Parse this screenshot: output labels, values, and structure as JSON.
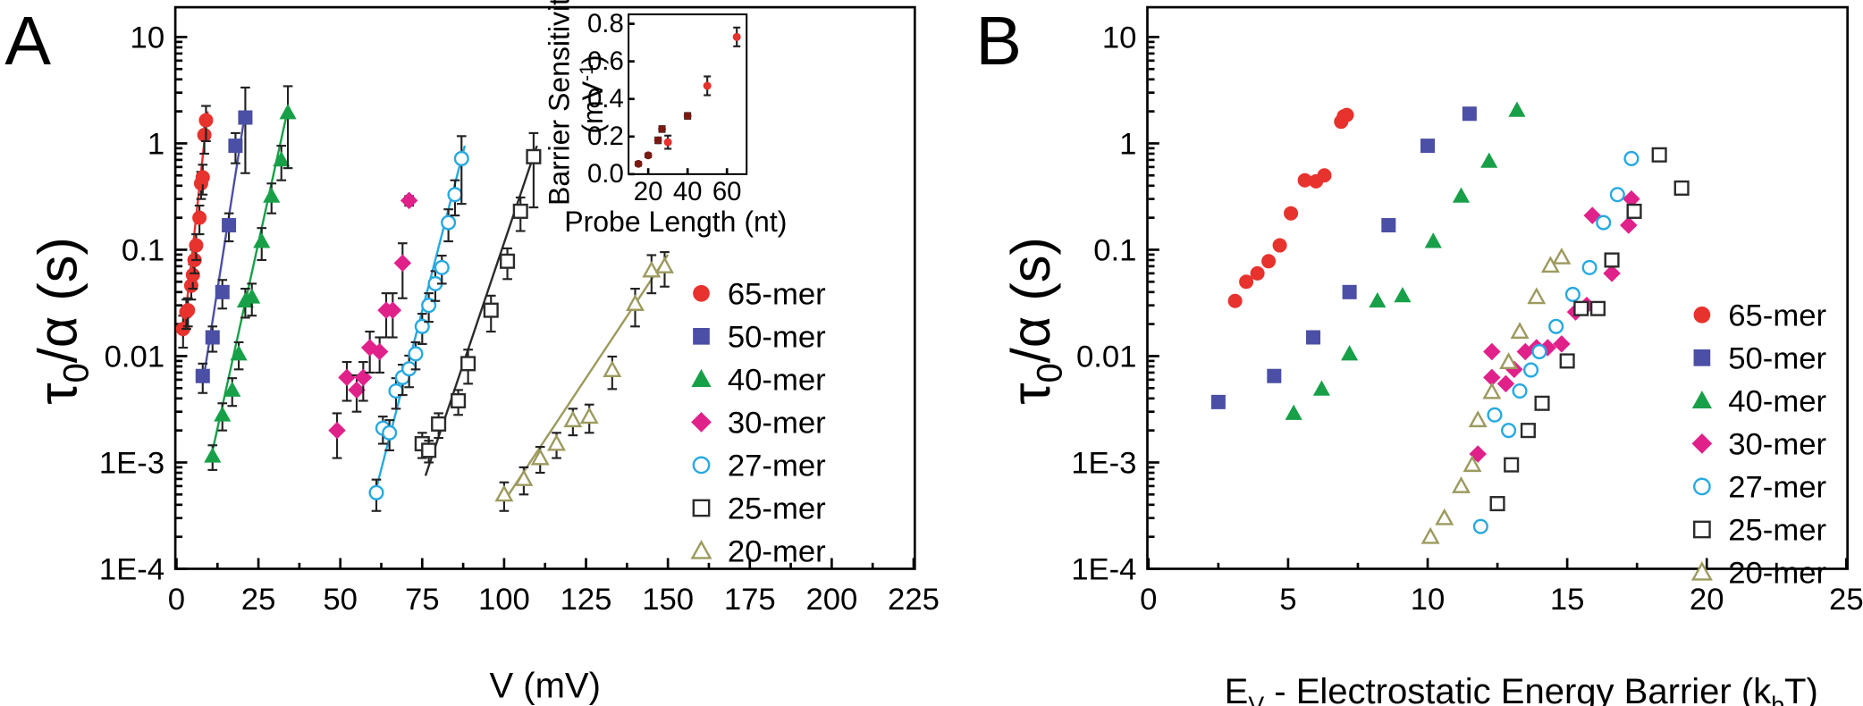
{
  "panels": {
    "a": {
      "letter": "A",
      "xlabel": "V (mV)",
      "ylabel_main": "τ",
      "ylabel_sub": "0",
      "ylabel_rest": "/α (s)"
    },
    "b": {
      "letter": "B",
      "xlabel_main": "E",
      "xlabel_sub": "V",
      "xlabel_mid": " - Electrostatic Energy Barrier (k",
      "xlabel_sub2": "b",
      "xlabel_end": "T)",
      "ylabel_main": "τ",
      "ylabel_sub": "0",
      "ylabel_rest": "/α (s)"
    },
    "inset": {
      "xlabel": "Probe Length (nt)",
      "ylabel_line1": "Barrier Sensitivity",
      "ylabel_line2_pre": "(mV",
      "ylabel_line2_sup": "-1",
      "ylabel_line2_post": ")"
    }
  },
  "y_tick_labels": [
    "1E-4",
    "1E-3",
    "0.01",
    "0.1",
    "1",
    "10"
  ],
  "series_style": [
    {
      "name": "65-mer",
      "color": "#e8322e",
      "marker": "circle",
      "filled": true
    },
    {
      "name": "50-mer",
      "color": "#4b4fa6",
      "marker": "square",
      "filled": true
    },
    {
      "name": "40-mer",
      "color": "#18a049",
      "marker": "triangle",
      "filled": true
    },
    {
      "name": "30-mer",
      "color": "#e0218a",
      "marker": "diamond",
      "filled": true
    },
    {
      "name": "27-mer",
      "color": "#27a9e1",
      "marker": "circle",
      "filled": false
    },
    {
      "name": "25-mer",
      "color": "#2b2b2b",
      "marker": "square",
      "filled": false
    },
    {
      "name": "20-mer",
      "color": "#9c9a5e",
      "marker": "triangle",
      "filled": false
    }
  ],
  "chart_data": [
    {
      "id": "panel-a",
      "type": "scatter",
      "title": "",
      "xlabel": "V (mV)",
      "ylabel": "τ0/α (s)",
      "xlim": [
        0,
        225
      ],
      "ylim": [
        0.0001,
        20
      ],
      "yscale": "log",
      "xticks": [
        0,
        25,
        50,
        75,
        100,
        125,
        150,
        175,
        200,
        225
      ],
      "legend": "right",
      "series": [
        {
          "name": "65-mer",
          "x": [
            2,
            3,
            3.5,
            4.5,
            5,
            5.5,
            6,
            7,
            7.5,
            8,
            8.5,
            9
          ],
          "y": [
            0.018,
            0.026,
            0.027,
            0.046,
            0.058,
            0.08,
            0.11,
            0.2,
            0.42,
            0.48,
            1.2,
            1.65
          ],
          "err": [
            0.006,
            0.008,
            0.008,
            0.012,
            0.015,
            0.02,
            0.03,
            0.06,
            0.12,
            0.15,
            0.4,
            0.6
          ],
          "fit": [
            [
              2,
              0.015
            ],
            [
              9.5,
              2.0
            ]
          ]
        },
        {
          "name": "50-mer",
          "x": [
            8,
            11,
            14,
            16,
            18,
            21
          ],
          "y": [
            0.0065,
            0.015,
            0.04,
            0.17,
            0.95,
            1.75
          ],
          "err": [
            0.002,
            0.004,
            0.012,
            0.05,
            0.3,
            1.6
          ],
          "fit": [
            [
              8,
              0.0055
            ],
            [
              21,
              2.0
            ]
          ]
        },
        {
          "name": "40-mer",
          "x": [
            11,
            14,
            17,
            19,
            21,
            23,
            26,
            29,
            32,
            34
          ],
          "y": [
            0.00115,
            0.0028,
            0.0048,
            0.0105,
            0.033,
            0.036,
            0.12,
            0.32,
            0.7,
            1.95
          ],
          "err": [
            0.0003,
            0.0008,
            0.0014,
            0.003,
            0.01,
            0.012,
            0.04,
            0.1,
            0.25,
            1.5
          ],
          "fit": [
            [
              10.5,
              0.0011
            ],
            [
              34,
              2.1
            ]
          ]
        },
        {
          "name": "30-mer",
          "x": [
            49,
            52,
            55,
            57,
            59,
            62,
            64,
            66,
            69,
            71
          ],
          "y": [
            0.002,
            0.0063,
            0.0048,
            0.0063,
            0.012,
            0.011,
            0.027,
            0.027,
            0.075,
            0.29
          ],
          "err": [
            0.0009,
            0.0025,
            0.0018,
            0.0025,
            0.005,
            0.004,
            0.012,
            0.012,
            0.04,
            0.03
          ],
          "fit": []
        },
        {
          "name": "27-mer",
          "x": [
            61,
            63,
            65,
            67,
            69,
            71,
            73,
            75,
            77,
            79,
            81,
            83,
            85,
            87
          ],
          "y": [
            0.00052,
            0.0021,
            0.0019,
            0.0047,
            0.0063,
            0.0076,
            0.0105,
            0.019,
            0.03,
            0.048,
            0.068,
            0.18,
            0.33,
            0.72
          ],
          "err": [
            0.00017,
            0.0006,
            0.0006,
            0.0015,
            0.002,
            0.0025,
            0.003,
            0.006,
            0.009,
            0.015,
            0.02,
            0.06,
            0.12,
            0.45
          ],
          "fit": [
            [
              60.5,
              0.0005
            ],
            [
              88,
              0.95
            ]
          ]
        },
        {
          "name": "25-mer",
          "x": [
            75,
            77,
            80,
            86,
            89,
            96,
            101,
            105,
            109
          ],
          "y": [
            0.0015,
            0.0013,
            0.0023,
            0.0038,
            0.0085,
            0.027,
            0.078,
            0.23,
            0.75
          ],
          "err": [
            0.0004,
            0.0003,
            0.0006,
            0.001,
            0.003,
            0.01,
            0.025,
            0.08,
            0.5
          ],
          "fit": [
            [
              76,
              0.00075
            ],
            [
              110,
              0.95
            ]
          ]
        },
        {
          "name": "20-mer",
          "x": [
            100,
            106,
            111,
            116,
            121,
            126,
            133,
            140,
            145,
            149
          ],
          "y": [
            0.0005,
            0.0007,
            0.0011,
            0.0015,
            0.0025,
            0.0027,
            0.0074,
            0.031,
            0.064,
            0.07
          ],
          "err": [
            0.00015,
            0.0002,
            0.0003,
            0.0004,
            0.0007,
            0.0008,
            0.0025,
            0.012,
            0.025,
            0.025
          ],
          "fit": [
            [
              100,
              0.00043
            ],
            [
              150,
              0.09
            ]
          ]
        }
      ]
    },
    {
      "id": "panel-a-inset",
      "type": "scatter",
      "xlabel": "Probe Length (nt)",
      "ylabel": "Barrier Sensitivity (mV-1)",
      "xlim": [
        10,
        70
      ],
      "ylim": [
        0,
        0.85
      ],
      "xticks": [
        20,
        40,
        60
      ],
      "yticks": [
        0.0,
        0.2,
        0.4,
        0.6,
        0.8
      ],
      "series": [
        {
          "name": "sensitivity",
          "x": [
            15,
            20,
            25,
            27,
            30,
            40,
            50,
            65
          ],
          "y": [
            0.055,
            0.1,
            0.18,
            0.24,
            0.17,
            0.31,
            0.47,
            0.73
          ],
          "err": [
            0.01,
            0.01,
            0.015,
            0.015,
            0.035,
            0.015,
            0.05,
            0.05
          ]
        }
      ]
    },
    {
      "id": "panel-b",
      "type": "scatter",
      "title": "",
      "xlabel": "EV - Electrostatic Energy Barrier (kbT)",
      "ylabel": "τ0/α (s)",
      "xlim": [
        0,
        25
      ],
      "ylim": [
        0.0001,
        20
      ],
      "yscale": "log",
      "xticks": [
        0,
        5,
        10,
        15,
        20,
        25
      ],
      "legend": "right",
      "series": [
        {
          "name": "65-mer",
          "x": [
            3.1,
            3.5,
            3.9,
            4.3,
            4.7,
            5.1,
            5.6,
            6.0,
            6.3,
            6.9,
            7.0,
            7.1
          ],
          "y": [
            0.033,
            0.05,
            0.06,
            0.078,
            0.11,
            0.22,
            0.45,
            0.44,
            0.5,
            1.6,
            1.8,
            1.85
          ]
        },
        {
          "name": "50-mer",
          "x": [
            2.5,
            4.5,
            5.9,
            7.2,
            8.6,
            10.0,
            11.5
          ],
          "y": [
            0.0037,
            0.0065,
            0.015,
            0.04,
            0.17,
            0.95,
            1.9
          ]
        },
        {
          "name": "40-mer",
          "x": [
            5.2,
            6.2,
            7.2,
            8.2,
            9.1,
            10.2,
            11.2,
            12.2,
            13.2
          ],
          "y": [
            0.0029,
            0.0049,
            0.0105,
            0.033,
            0.037,
            0.12,
            0.32,
            0.68,
            2.05
          ]
        },
        {
          "name": "30-mer",
          "x": [
            11.8,
            12.3,
            12.3,
            12.8,
            13.1,
            13.5,
            13.9,
            14.3,
            14.8,
            15.3,
            15.7,
            16.6,
            17.2,
            15.9,
            17.3
          ],
          "y": [
            0.0012,
            0.0063,
            0.011,
            0.0055,
            0.0075,
            0.011,
            0.012,
            0.012,
            0.013,
            0.026,
            0.03,
            0.06,
            0.17,
            0.21,
            0.3
          ]
        },
        {
          "name": "27-mer",
          "x": [
            11.9,
            12.4,
            12.9,
            13.3,
            13.7,
            14.0,
            14.6,
            15.2,
            15.8,
            16.3,
            16.8,
            17.3
          ],
          "y": [
            0.00025,
            0.0028,
            0.002,
            0.0047,
            0.0074,
            0.011,
            0.019,
            0.038,
            0.068,
            0.18,
            0.33,
            0.72
          ]
        },
        {
          "name": "25-mer",
          "x": [
            12.5,
            13.0,
            13.6,
            14.1,
            15.0,
            15.5,
            16.1,
            16.6,
            17.4,
            18.3,
            19.1
          ],
          "y": [
            0.00041,
            0.00095,
            0.002,
            0.0036,
            0.009,
            0.028,
            0.028,
            0.08,
            0.23,
            0.78,
            0.38
          ]
        },
        {
          "name": "20-mer",
          "x": [
            10.1,
            10.6,
            11.2,
            11.6,
            11.8,
            12.3,
            12.9,
            13.3,
            13.9,
            14.4,
            14.8
          ],
          "y": [
            0.0002,
            0.0003,
            0.0006,
            0.00095,
            0.0025,
            0.0046,
            0.0088,
            0.017,
            0.036,
            0.071,
            0.085
          ]
        }
      ]
    }
  ]
}
